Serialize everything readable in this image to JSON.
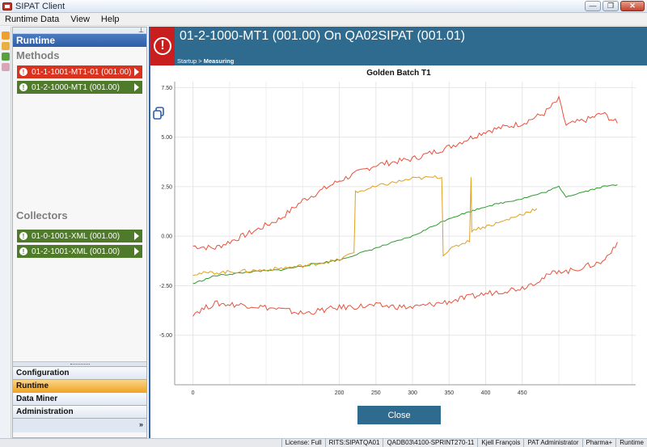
{
  "window": {
    "title": "SIPAT Client"
  },
  "menu": [
    "Runtime Data",
    "View",
    "Help"
  ],
  "sidebar": {
    "header": "Runtime",
    "methods_title": "Methods",
    "methods": [
      {
        "label": "01-1-1001-MT1-01 (001.00)",
        "status": "error"
      },
      {
        "label": "01-2-1000-MT1 (001.00)",
        "status": "ok"
      }
    ],
    "collectors_title": "Collectors",
    "collectors": [
      {
        "label": "01-0-1001-XML (001.00)",
        "status": "ok"
      },
      {
        "label": "01-2-1001-XML (001.00)",
        "status": "ok"
      }
    ],
    "nav": [
      "Configuration",
      "Runtime",
      "Data Miner",
      "Administration"
    ],
    "nav_active": "Runtime",
    "nav_more": "»"
  },
  "main": {
    "title": "01-2-1000-MT1 (001.00) On QA02SIPAT (001.01)",
    "breadcrumb": {
      "parent": "Startup",
      "separator": ">",
      "current": "Measuring"
    },
    "close_label": "Close"
  },
  "chart_data": {
    "type": "line",
    "title": "Golden Batch T1",
    "xlabel": "",
    "ylabel": "",
    "xlim": [
      -25,
      605
    ],
    "ylim": [
      -7.5,
      7.8
    ],
    "x_ticks": [
      "0",
      "200",
      "250",
      "300",
      "350",
      "400",
      "450"
    ],
    "y_ticks": [
      "7.50",
      "5.00",
      "2.50",
      "0.00",
      "-2.50",
      "-5.00"
    ],
    "grid": true,
    "series": [
      {
        "color": "#e8513b",
        "role": "upper limit",
        "x": [
          0,
          30,
          80,
          120,
          150,
          200,
          250,
          300,
          350,
          400,
          450,
          480,
          500,
          510,
          540,
          560,
          580
        ],
        "y": [
          -0.5,
          -0.6,
          0.2,
          0.9,
          1.8,
          2.8,
          3.6,
          3.9,
          4.5,
          5.3,
          5.7,
          6.2,
          6.9,
          5.6,
          5.9,
          6.2,
          5.7
        ]
      },
      {
        "color": "#e8513b",
        "role": "lower limit",
        "x": [
          0,
          30,
          80,
          120,
          150,
          200,
          250,
          300,
          350,
          400,
          450,
          480,
          500,
          510,
          540,
          560,
          580
        ],
        "y": [
          -3.9,
          -3.4,
          -3.5,
          -3.7,
          -3.9,
          -3.6,
          -3.5,
          -3.6,
          -3.3,
          -2.9,
          -2.6,
          -2.1,
          -1.7,
          -1.8,
          -1.5,
          -1.3,
          -0.3
        ]
      },
      {
        "color": "#2e9a2e",
        "role": "golden batch",
        "x": [
          0,
          30,
          80,
          120,
          150,
          200,
          250,
          300,
          350,
          400,
          450,
          480,
          500,
          510,
          540,
          560,
          580
        ],
        "y": [
          -2.4,
          -2.0,
          -1.8,
          -1.7,
          -1.5,
          -1.2,
          -0.6,
          0.0,
          0.9,
          1.5,
          1.9,
          2.2,
          2.5,
          2.0,
          2.3,
          2.5,
          2.6
        ]
      },
      {
        "color": "#e0a020",
        "role": "current batch",
        "x": [
          0,
          50,
          100,
          150,
          200,
          220,
          222,
          260,
          300,
          340,
          342,
          360,
          378,
          380,
          381,
          420,
          470
        ],
        "y": [
          -1.9,
          -1.8,
          -1.7,
          -1.5,
          -1.2,
          -0.8,
          2.2,
          2.6,
          2.9,
          3.0,
          -0.9,
          -0.5,
          -0.2,
          2.9,
          0.3,
          0.7,
          1.4
        ]
      }
    ]
  },
  "statusbar": [
    "License: Full",
    "RITS:SIPATQA01",
    "QADB03\\4100-SPRINT270-11",
    "Kjell François",
    "PAT Administrator",
    "Pharma+",
    "Runtime"
  ],
  "colors": {
    "header": "#2f6a8f",
    "alert": "#c81e1e",
    "method_error": "#d9321f",
    "method_ok": "#4f7a29",
    "nav_active": "#f0a528"
  }
}
